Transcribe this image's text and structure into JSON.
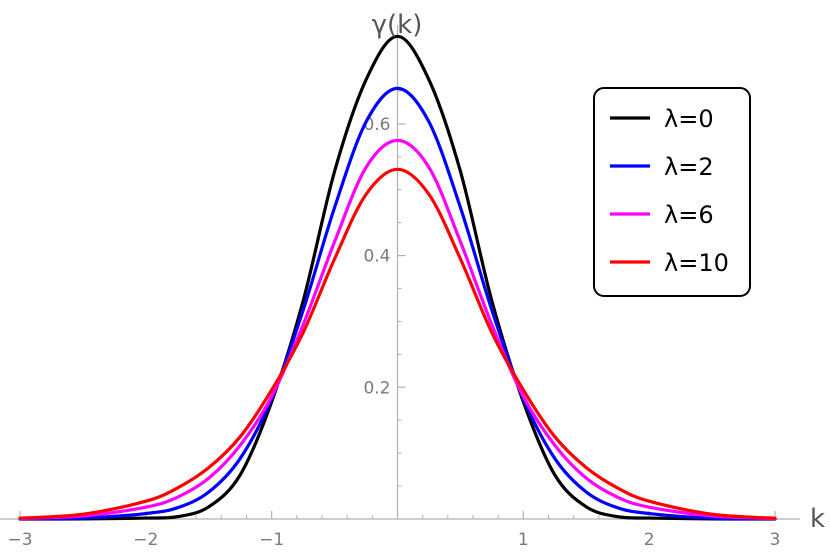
{
  "chart_data": {
    "type": "line",
    "title": "",
    "xlabel": "k",
    "ylabel": "γ(k)",
    "xlim": [
      -3,
      3
    ],
    "ylim": [
      0,
      0.735
    ],
    "x_ticks": [
      {
        "value": -3,
        "label": "−3"
      },
      {
        "value": -2,
        "label": "−2"
      },
      {
        "value": -1,
        "label": "−1"
      },
      {
        "value": 1,
        "label": "1"
      },
      {
        "value": 2,
        "label": "2"
      },
      {
        "value": 3,
        "label": "3"
      }
    ],
    "y_ticks": [
      {
        "value": 0.2,
        "label": "0.2"
      },
      {
        "value": 0.4,
        "label": "0.4"
      },
      {
        "value": 0.6,
        "label": "0.6"
      }
    ],
    "grid": false,
    "legend_position": "top-right",
    "series": [
      {
        "name": "λ=0",
        "color": "#000000",
        "x": [
          -3.0,
          -2.5,
          -2.0,
          -1.75,
          -1.5,
          -1.25,
          -1.0,
          -0.75,
          -0.5,
          -0.25,
          0.0,
          0.25,
          0.5,
          0.75,
          1.0,
          1.25,
          1.5,
          1.75,
          2.0,
          2.5,
          3.0
        ],
        "y": [
          0.0,
          0.0002,
          0.0014,
          0.0035,
          0.0185,
          0.067,
          0.178,
          0.331,
          0.528,
          0.667,
          0.733,
          0.667,
          0.528,
          0.331,
          0.178,
          0.067,
          0.0185,
          0.0035,
          0.0014,
          0.0002,
          0.0
        ]
      },
      {
        "name": "λ=2",
        "color": "#0000ff",
        "x": [
          -3.0,
          -2.5,
          -2.0,
          -1.75,
          -1.5,
          -1.25,
          -1.0,
          -0.75,
          -0.5,
          -0.25,
          0.0,
          0.25,
          0.5,
          0.75,
          1.0,
          1.25,
          1.5,
          1.75,
          2.0,
          2.5,
          3.0
        ],
        "y": [
          0.0003,
          0.0013,
          0.0083,
          0.017,
          0.041,
          0.092,
          0.183,
          0.317,
          0.473,
          0.603,
          0.654,
          0.603,
          0.473,
          0.317,
          0.183,
          0.092,
          0.041,
          0.017,
          0.0083,
          0.0013,
          0.0003
        ]
      },
      {
        "name": "λ=6",
        "color": "#ff00ff",
        "x": [
          -3.0,
          -2.5,
          -2.0,
          -1.75,
          -1.5,
          -1.25,
          -1.0,
          -0.75,
          -0.5,
          -0.25,
          0.0,
          0.25,
          0.5,
          0.75,
          1.0,
          1.25,
          1.5,
          1.75,
          2.0,
          2.5,
          3.0
        ],
        "y": [
          0.0008,
          0.0047,
          0.018,
          0.033,
          0.062,
          0.112,
          0.186,
          0.295,
          0.421,
          0.534,
          0.575,
          0.534,
          0.421,
          0.295,
          0.186,
          0.112,
          0.062,
          0.033,
          0.018,
          0.0047,
          0.0008
        ]
      },
      {
        "name": "λ=10",
        "color": "#ff0000",
        "x": [
          -3.0,
          -2.5,
          -2.0,
          -1.75,
          -1.5,
          -1.25,
          -1.0,
          -0.75,
          -0.5,
          -0.25,
          0.0,
          0.25,
          0.5,
          0.75,
          1.0,
          1.25,
          1.5,
          1.75,
          2.0,
          2.5,
          3.0
        ],
        "y": [
          0.0012,
          0.0072,
          0.027,
          0.047,
          0.078,
          0.125,
          0.196,
          0.283,
          0.395,
          0.493,
          0.531,
          0.493,
          0.395,
          0.283,
          0.196,
          0.125,
          0.078,
          0.047,
          0.027,
          0.0072,
          0.0012
        ]
      }
    ]
  }
}
